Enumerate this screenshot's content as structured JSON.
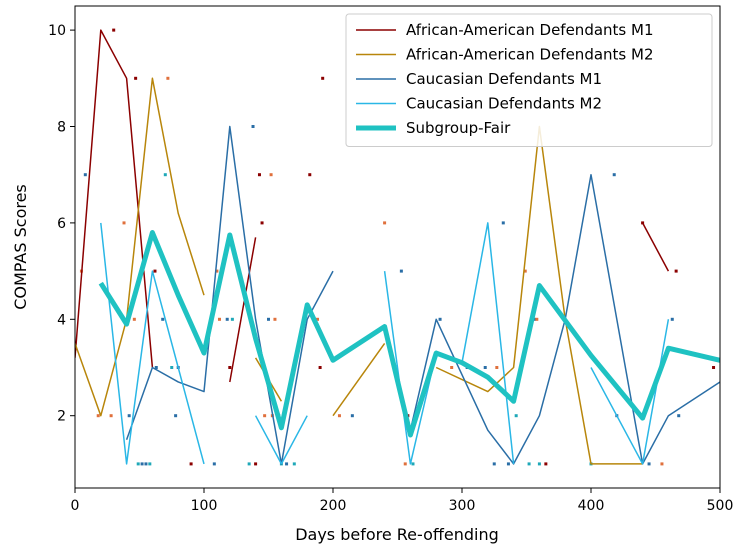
{
  "chart_data": {
    "type": "line",
    "xlabel": "Days before Re-offending",
    "ylabel": "COMPAS Scores",
    "xlim": [
      0,
      500
    ],
    "ylim": [
      0.5,
      10.5
    ],
    "xticks": [
      0,
      100,
      200,
      300,
      400,
      500
    ],
    "yticks": [
      2,
      4,
      6,
      8,
      10
    ],
    "legend_position": "top-right",
    "grid": false,
    "series": [
      {
        "name": "African-American Defendants M1",
        "color": "#8b0000",
        "width": 1.5,
        "segments": [
          [
            [
              0,
              3.2
            ],
            [
              20,
              10
            ],
            [
              40,
              9
            ],
            [
              60,
              3
            ]
          ],
          [
            [
              120,
              2.7
            ],
            [
              140,
              5.7
            ]
          ],
          [
            [
              440,
              6
            ],
            [
              460,
              5
            ]
          ]
        ]
      },
      {
        "name": "African-American Defendants M2",
        "color": "#b8860b",
        "width": 1.5,
        "segments": [
          [
            [
              0,
              3.5
            ],
            [
              20,
              2
            ],
            [
              40,
              4
            ],
            [
              60,
              9
            ],
            [
              80,
              6.2
            ],
            [
              100,
              4.5
            ]
          ],
          [
            [
              140,
              3.2
            ],
            [
              160,
              2.3
            ]
          ],
          [
            [
              200,
              2
            ],
            [
              240,
              3.5
            ]
          ],
          [
            [
              280,
              3
            ],
            [
              320,
              2.5
            ],
            [
              340,
              3
            ],
            [
              360,
              8
            ],
            [
              380,
              4
            ],
            [
              400,
              1
            ],
            [
              440,
              1
            ]
          ]
        ]
      },
      {
        "name": "Caucasian Defendants M1",
        "color": "#2a6ea6",
        "width": 1.5,
        "segments": [
          [
            [
              40,
              1.5
            ],
            [
              60,
              3
            ],
            [
              80,
              2.7
            ],
            [
              100,
              2.5
            ],
            [
              120,
              8
            ],
            [
              140,
              4
            ],
            [
              160,
              1
            ],
            [
              180,
              4
            ],
            [
              200,
              5
            ]
          ],
          [
            [
              260,
              1.7
            ],
            [
              280,
              4
            ],
            [
              320,
              1.7
            ],
            [
              340,
              1
            ],
            [
              360,
              2
            ],
            [
              380,
              4
            ],
            [
              400,
              7
            ],
            [
              420,
              4
            ],
            [
              440,
              1
            ],
            [
              460,
              2
            ],
            [
              500,
              2.7
            ]
          ]
        ]
      },
      {
        "name": "Caucasian Defendants M2",
        "color": "#2ab7e6",
        "width": 1.5,
        "segments": [
          [
            [
              20,
              6
            ],
            [
              40,
              1
            ],
            [
              60,
              5
            ],
            [
              80,
              3
            ],
            [
              100,
              1
            ]
          ],
          [
            [
              140,
              2
            ],
            [
              160,
              1
            ]
          ],
          [
            [
              160,
              1
            ],
            [
              180,
              2
            ]
          ],
          [
            [
              240,
              5
            ],
            [
              260,
              1
            ],
            [
              280,
              3.3
            ],
            [
              300,
              3.1
            ],
            [
              320,
              6
            ],
            [
              340,
              1
            ]
          ],
          [
            [
              400,
              3
            ],
            [
              440,
              1
            ],
            [
              460,
              4
            ]
          ]
        ]
      },
      {
        "name": "Subgroup-Fair",
        "color": "#1fc2c2",
        "width": 5,
        "segments": [
          [
            [
              20,
              4.75
            ],
            [
              40,
              3.9
            ],
            [
              60,
              5.8
            ],
            [
              80,
              4.5
            ],
            [
              100,
              3.3
            ],
            [
              120,
              5.75
            ],
            [
              140,
              3.6
            ],
            [
              160,
              1.75
            ],
            [
              180,
              4.3
            ],
            [
              200,
              3.15
            ],
            [
              240,
              3.85
            ],
            [
              260,
              1.6
            ],
            [
              280,
              3.3
            ],
            [
              300,
              3.1
            ],
            [
              320,
              2.8
            ],
            [
              340,
              2.3
            ],
            [
              360,
              4.7
            ],
            [
              400,
              3.25
            ],
            [
              440,
              1.95
            ],
            [
              460,
              3.4
            ],
            [
              500,
              3.15
            ]
          ]
        ]
      }
    ],
    "scatter_colors": [
      "#e0703c",
      "#2a6ea6",
      "#1fa8b8",
      "#8b0000"
    ],
    "scatter_points": [
      [
        5,
        5,
        0
      ],
      [
        8,
        7,
        1
      ],
      [
        18,
        2,
        0
      ],
      [
        28,
        2,
        0
      ],
      [
        30,
        10,
        3
      ],
      [
        38,
        6,
        0
      ],
      [
        42,
        2,
        1
      ],
      [
        46,
        4,
        0
      ],
      [
        47,
        9,
        3
      ],
      [
        49,
        1,
        2
      ],
      [
        52,
        1,
        1
      ],
      [
        55,
        1,
        1
      ],
      [
        58,
        1,
        2
      ],
      [
        62,
        5,
        3
      ],
      [
        63,
        3,
        1
      ],
      [
        68,
        4,
        1
      ],
      [
        70,
        7,
        2
      ],
      [
        72,
        9,
        0
      ],
      [
        75,
        3,
        2
      ],
      [
        78,
        2,
        1
      ],
      [
        80,
        3,
        1
      ],
      [
        90,
        1,
        3
      ],
      [
        108,
        1,
        1
      ],
      [
        110,
        5,
        0
      ],
      [
        112,
        4,
        0
      ],
      [
        118,
        4,
        1
      ],
      [
        120,
        3,
        3
      ],
      [
        122,
        4,
        2
      ],
      [
        135,
        1,
        2
      ],
      [
        138,
        8,
        1
      ],
      [
        140,
        1,
        3
      ],
      [
        143,
        7,
        3
      ],
      [
        145,
        6,
        3
      ],
      [
        147,
        2,
        0
      ],
      [
        150,
        4,
        1
      ],
      [
        152,
        7,
        0
      ],
      [
        153,
        2,
        0
      ],
      [
        155,
        4,
        0
      ],
      [
        158,
        2,
        2
      ],
      [
        160,
        1,
        2
      ],
      [
        164,
        1,
        1
      ],
      [
        170,
        1,
        2
      ],
      [
        182,
        7,
        3
      ],
      [
        188,
        4,
        0
      ],
      [
        190,
        3,
        3
      ],
      [
        192,
        9,
        3
      ],
      [
        205,
        2,
        0
      ],
      [
        215,
        2,
        1
      ],
      [
        240,
        6,
        0
      ],
      [
        253,
        5,
        1
      ],
      [
        256,
        1,
        0
      ],
      [
        258,
        2,
        3
      ],
      [
        262,
        1,
        2
      ],
      [
        283,
        4,
        1
      ],
      [
        292,
        3,
        0
      ],
      [
        304,
        3,
        1
      ],
      [
        318,
        3,
        1
      ],
      [
        325,
        1,
        1
      ],
      [
        327,
        3,
        0
      ],
      [
        332,
        6,
        1
      ],
      [
        336,
        1,
        1
      ],
      [
        342,
        2,
        2
      ],
      [
        349,
        5,
        0
      ],
      [
        352,
        1,
        2
      ],
      [
        356,
        4,
        1
      ],
      [
        358,
        4,
        0
      ],
      [
        360,
        1,
        2
      ],
      [
        365,
        1,
        3
      ],
      [
        400,
        1,
        2
      ],
      [
        418,
        7,
        1
      ],
      [
        420,
        2,
        1
      ],
      [
        440,
        6,
        3
      ],
      [
        445,
        1,
        1
      ],
      [
        455,
        1,
        0
      ],
      [
        463,
        4,
        1
      ],
      [
        466,
        5,
        3
      ],
      [
        468,
        2,
        1
      ],
      [
        495,
        3,
        3
      ]
    ]
  }
}
